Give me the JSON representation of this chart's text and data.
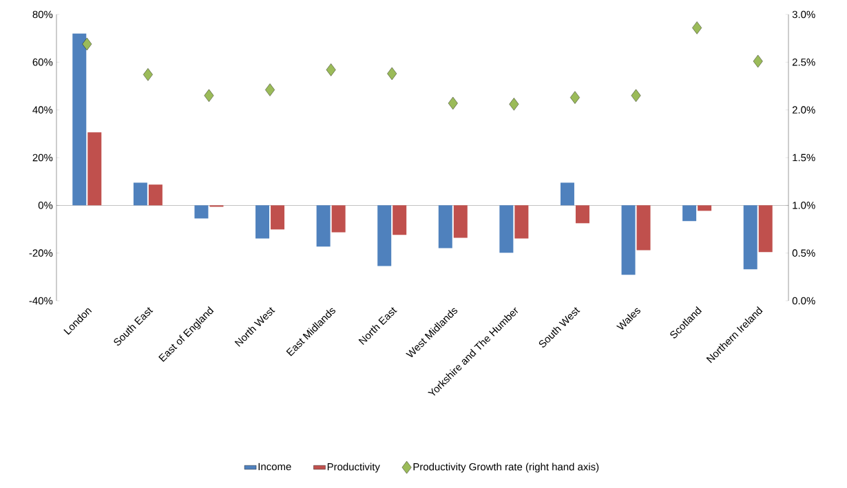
{
  "chart_data": {
    "type": "bar",
    "categories": [
      "London",
      "South East",
      "East of England",
      "North West",
      "East Midlands",
      "North East",
      "West Midlands",
      "Yorkshire and The Humber",
      "South West",
      "Wales",
      "Scotland",
      "Northern Ireland"
    ],
    "series": [
      {
        "name": "Income",
        "color": "#4f81bd",
        "values": [
          72,
          9.5,
          -5.5,
          -13.9,
          -17.3,
          -25.4,
          -17.9,
          -19.9,
          9.5,
          -29.1,
          -6.6,
          -26.8
        ]
      },
      {
        "name": "Productivity",
        "color": "#c0504d",
        "values": [
          30.6,
          8.7,
          -0.6,
          -10.1,
          -11.3,
          -12.4,
          -13.6,
          -13.9,
          -7.5,
          -18.8,
          -2.3,
          -19.6
        ]
      },
      {
        "name": "Productivity Growth rate (right hand axis)",
        "type": "scatter",
        "axis": "y2",
        "marker": "diamond",
        "color": "#9bbb59",
        "values": [
          2.69,
          2.37,
          2.15,
          2.21,
          2.42,
          2.38,
          2.07,
          2.06,
          2.13,
          2.15,
          2.86,
          2.51
        ]
      }
    ],
    "ylim": [
      -40,
      80
    ],
    "yticks": [
      {
        "value": -40,
        "label": "-40%"
      },
      {
        "value": -20,
        "label": "-20%"
      },
      {
        "value": 0,
        "label": "0%"
      },
      {
        "value": 20,
        "label": "20%"
      },
      {
        "value": 40,
        "label": "40%"
      },
      {
        "value": 60,
        "label": "60%"
      },
      {
        "value": 80,
        "label": "80%"
      }
    ],
    "y2lim": [
      0,
      3
    ],
    "y2ticks": [
      {
        "value": 0,
        "label": "0.0%"
      },
      {
        "value": 0.5,
        "label": "0.5%"
      },
      {
        "value": 1,
        "label": "1.0%"
      },
      {
        "value": 1.5,
        "label": "1.5%"
      },
      {
        "value": 2,
        "label": "2.0%"
      },
      {
        "value": 2.5,
        "label": "2.5%"
      },
      {
        "value": 3,
        "label": "3.0%"
      }
    ],
    "legend": "bottom"
  }
}
